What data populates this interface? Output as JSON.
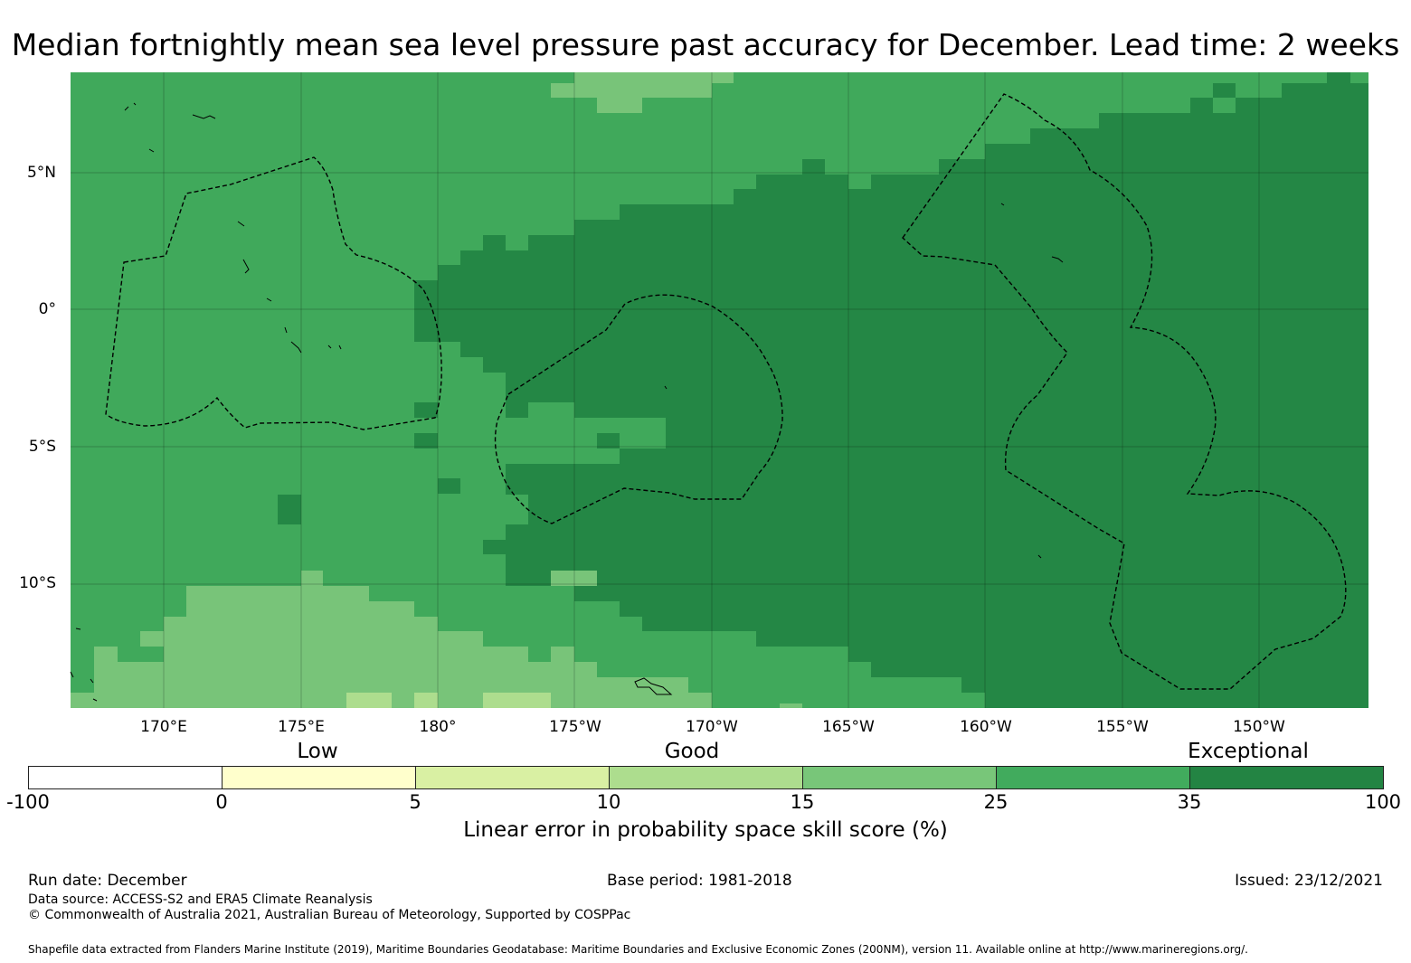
{
  "title": "Median fortnightly mean sea level pressure past accuracy for December. Lead time: 2 weeks",
  "map": {
    "lat_labels": [
      "5°N",
      "0°",
      "5°S",
      "10°S"
    ],
    "lon_labels": [
      "170°E",
      "175°E",
      "180°",
      "175°W",
      "170°W",
      "165°W",
      "160°W",
      "155°W",
      "150°W"
    ],
    "colors": {
      "exceptional": "#248745",
      "good_high": "#40a95b",
      "good_mid": "#78c479",
      "good_low": "#addd8e",
      "boundary": "#000000"
    }
  },
  "legend": {
    "categories": [
      "Low",
      "Good",
      "Exceptional"
    ],
    "ticks": [
      "-100",
      "0",
      "5",
      "10",
      "15",
      "25",
      "35",
      "100"
    ],
    "colors": [
      "#ffffff",
      "#ffffcc",
      "#d9f0a3",
      "#addd8e",
      "#78c679",
      "#41ab5d",
      "#238443"
    ],
    "title": "Linear error in probability space skill score (%)"
  },
  "footer": {
    "run_date": "Run date: December",
    "base_period": "Base period: 1981-2018",
    "issued": "Issued: 23/12/2021",
    "data_source": "Data source: ACCESS-S2 and ERA5 Climate Reanalysis",
    "copyright": "© Commonwealth of Australia 2021, Australian Bureau of Meteorology, Supported by COSPPac",
    "shapefile": "Shapefile data extracted from Flanders Marine Institute (2019), Maritime Boundaries Geodatabase: Maritime Boundaries and Exclusive Economic Zones (200NM), version 11. Available online at http://www.marineregions.org/."
  }
}
